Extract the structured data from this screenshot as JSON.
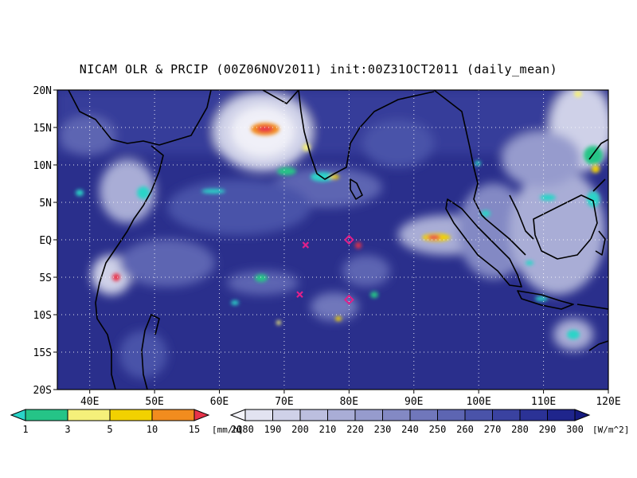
{
  "title": "NICAM OLR & PRCIP (00Z06NOV2011) init:00Z31OCT2011 (daily_mean)",
  "map": {
    "lat_labels": [
      "20N",
      "15N",
      "10N",
      "5N",
      "EQ",
      "5S",
      "10S",
      "15S",
      "20S"
    ],
    "lon_labels": [
      "40E",
      "50E",
      "60E",
      "70E",
      "80E",
      "90E",
      "100E",
      "110E",
      "120E"
    ],
    "lat_range": [
      -20,
      20
    ],
    "lon_range": [
      35,
      120
    ],
    "grid": "dotted",
    "background_color": "#2a2f8c",
    "markers": [
      {
        "type": "x",
        "lon": 73.3,
        "lat": -0.7,
        "color": "#e0208a"
      },
      {
        "type": "x",
        "lon": 72.4,
        "lat": -7.3,
        "color": "#e0208a"
      },
      {
        "type": "diamond",
        "lon": 80.0,
        "lat": 0.0,
        "color": "#e0208a"
      },
      {
        "type": "diamond",
        "lon": 80.0,
        "lat": -8.0,
        "color": "#e0208a"
      }
    ]
  },
  "legend_precip": {
    "labels": [
      "1",
      "3",
      "5",
      "10",
      "15",
      "20"
    ],
    "unit": "[mm/h]",
    "colors": [
      "#2ad4c8",
      "#25c487",
      "#f5f07a",
      "#f2d100",
      "#f28c1e",
      "#e8334a"
    ]
  },
  "legend_olr": {
    "labels": [
      "180",
      "190",
      "200",
      "210",
      "220",
      "230",
      "240",
      "250",
      "260",
      "270",
      "280",
      "290",
      "300"
    ],
    "unit": "[W/m^2]",
    "colors": [
      "#f4f4fa",
      "#e2e3f1",
      "#cfd1e8",
      "#bcbfdf",
      "#a9add6",
      "#969bcd",
      "#8389c4",
      "#7077bb",
      "#5d65b2",
      "#4a53a9",
      "#3a42a0",
      "#2b3296",
      "#1f258c",
      "#151a80"
    ]
  }
}
